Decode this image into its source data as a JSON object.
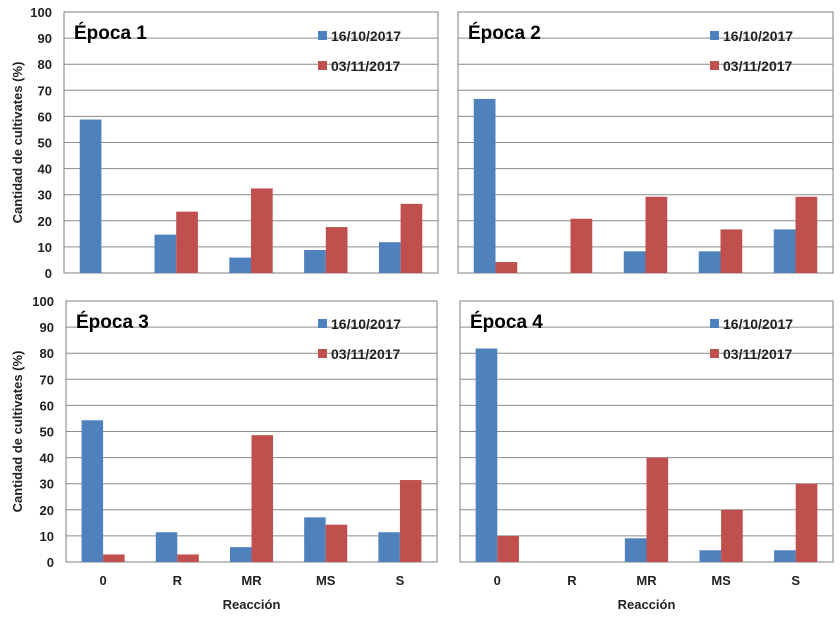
{
  "chart_data": [
    {
      "type": "bar",
      "title": "Época 1",
      "categories": [
        "0",
        "R",
        "MR",
        "MS",
        "S"
      ],
      "series": [
        {
          "name": "16/10/2017",
          "color": "#4f81bd",
          "values": [
            58.8,
            14.7,
            5.9,
            8.8,
            11.8
          ]
        },
        {
          "name": "03/11/2017",
          "color": "#c0504d",
          "values": [
            0,
            23.5,
            32.4,
            17.6,
            26.5
          ]
        }
      ],
      "ylabel": "Cantidad de cultivates (%)",
      "xlabel": "",
      "ylim": [
        0,
        100
      ],
      "yticks": [
        0,
        10,
        20,
        30,
        40,
        50,
        60,
        70,
        80,
        90,
        100
      ],
      "grid": true,
      "legend": "top-right"
    },
    {
      "type": "bar",
      "title": "Época 2",
      "categories": [
        "0",
        "R",
        "MR",
        "MS",
        "S"
      ],
      "series": [
        {
          "name": "16/10/2017",
          "color": "#4f81bd",
          "values": [
            66.7,
            0,
            8.3,
            8.3,
            16.7
          ]
        },
        {
          "name": "03/11/2017",
          "color": "#c0504d",
          "values": [
            4.2,
            20.8,
            29.2,
            16.7,
            29.2
          ]
        }
      ],
      "ylabel": "",
      "xlabel": "",
      "ylim": [
        0,
        100
      ],
      "grid": true,
      "legend": "top-right"
    },
    {
      "type": "bar",
      "title": "Época 3",
      "categories": [
        "0",
        "R",
        "MR",
        "MS",
        "S"
      ],
      "series": [
        {
          "name": "16/10/2017",
          "color": "#4f81bd",
          "values": [
            54.3,
            11.4,
            5.7,
            17.1,
            11.4
          ]
        },
        {
          "name": "03/11/2017",
          "color": "#c0504d",
          "values": [
            2.9,
            2.9,
            48.6,
            14.3,
            31.4
          ]
        }
      ],
      "ylabel": "Cantidad de cultivates (%)",
      "xlabel": "Reacción",
      "ylim": [
        0,
        100
      ],
      "yticks": [
        0,
        10,
        20,
        30,
        40,
        50,
        60,
        70,
        80,
        90,
        100
      ],
      "grid": true,
      "legend": "top-right"
    },
    {
      "type": "bar",
      "title": "Época 4",
      "categories": [
        "0",
        "R",
        "MR",
        "MS",
        "S"
      ],
      "series": [
        {
          "name": "16/10/2017",
          "color": "#4f81bd",
          "values": [
            81.8,
            0,
            9.1,
            4.5,
            4.5
          ]
        },
        {
          "name": "03/11/2017",
          "color": "#c0504d",
          "values": [
            10,
            0,
            40,
            20,
            30
          ]
        }
      ],
      "ylabel": "",
      "xlabel": "Reacción",
      "ylim": [
        0,
        100
      ],
      "grid": true,
      "legend": "top-right"
    }
  ]
}
